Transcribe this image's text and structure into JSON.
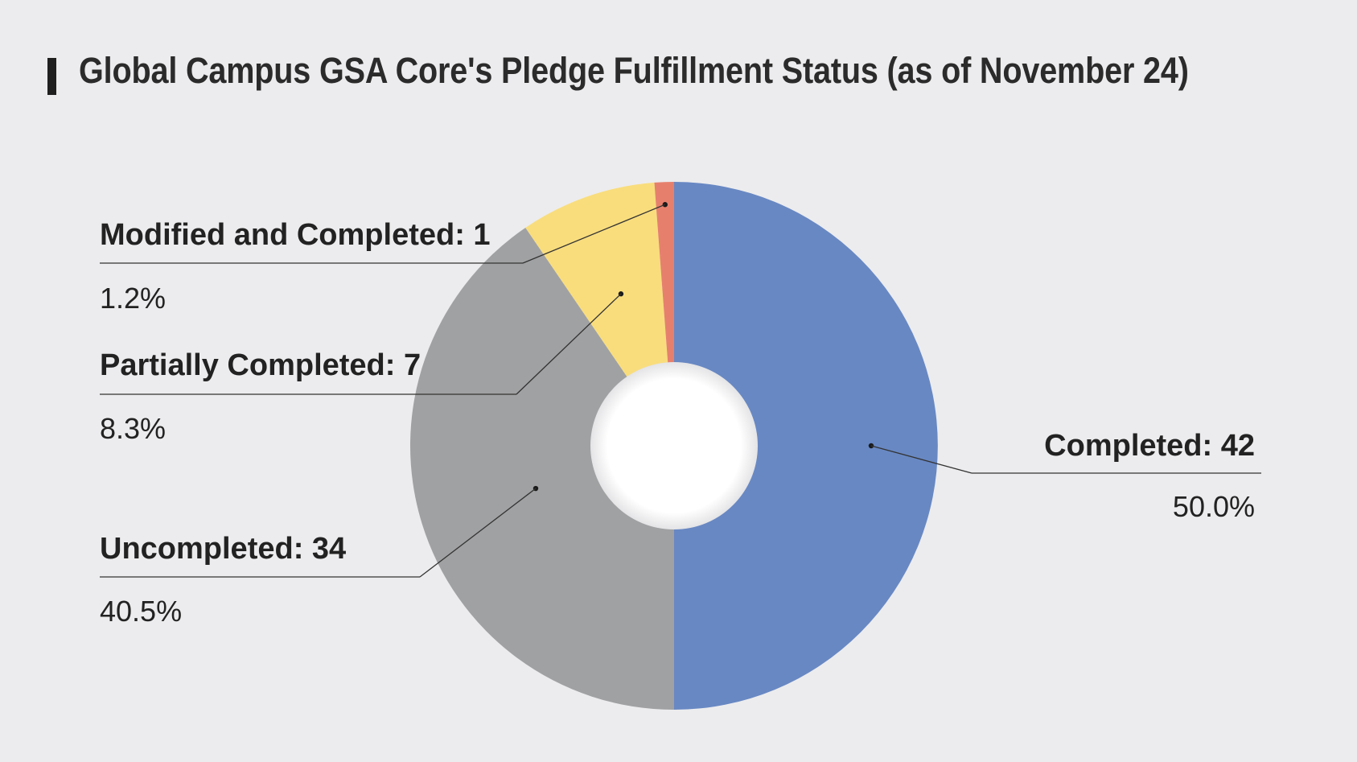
{
  "chart_data": {
    "type": "pie",
    "title": "Global Campus GSA Core's Pledge Fulfillment Status (as of November 24)",
    "donut": true,
    "categories": [
      "Completed",
      "Uncompleted",
      "Partially Completed",
      "Modified and Completed"
    ],
    "values": [
      42,
      34,
      7,
      1
    ],
    "labels": [
      {
        "name": "Completed: 42",
        "pct": "50.0%",
        "color": "#6888c3",
        "side": "right"
      },
      {
        "name": "Uncompleted: 34",
        "pct": "40.5%",
        "color": "#a0a1a3",
        "side": "left"
      },
      {
        "name": "Partially Completed: 7",
        "pct": "8.3%",
        "color": "#f9dd7d",
        "side": "left"
      },
      {
        "name": "Modified and Completed: 1",
        "pct": "1.2%",
        "color": "#e6806d",
        "side": "left"
      }
    ],
    "legend": "callouts",
    "grid": false
  }
}
